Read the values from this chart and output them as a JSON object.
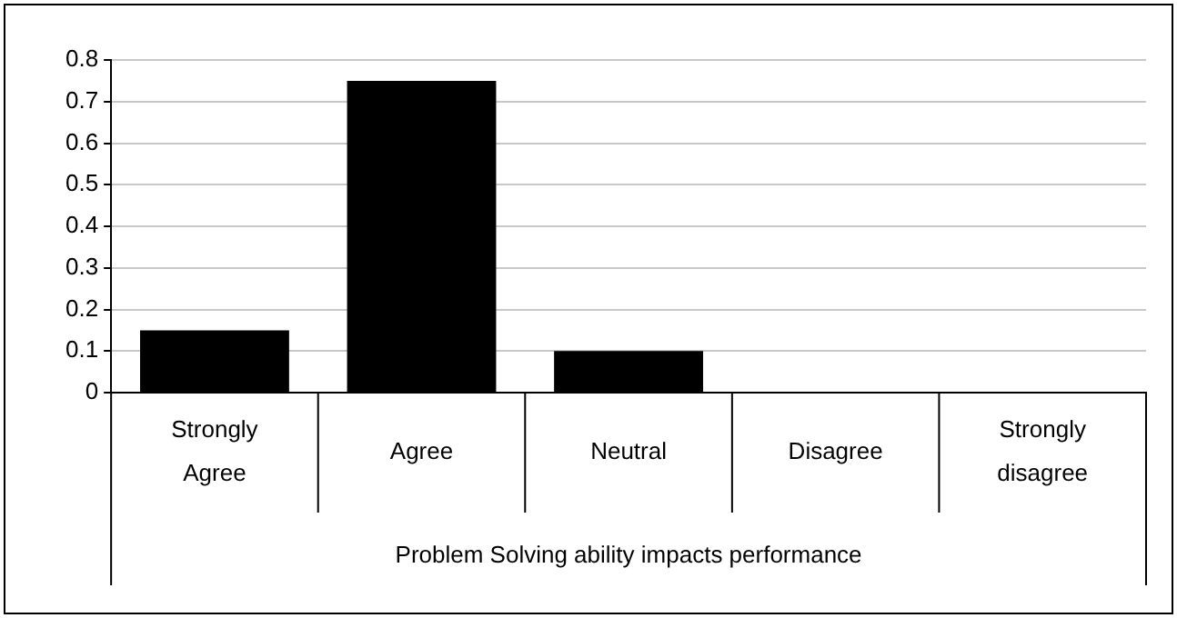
{
  "chart_data": {
    "type": "bar",
    "xlabel": "Problem Solving ability impacts performance",
    "categories": [
      "Strongly Agree",
      "Agree",
      "Neutral",
      "Disagree",
      "Strongly disagree"
    ],
    "values": [
      0.15,
      0.75,
      0.1,
      0,
      0
    ],
    "color": "#000000",
    "ylim": [
      0,
      0.8
    ],
    "yticks": [
      0,
      0.1,
      0.2,
      0.3,
      0.4,
      0.5,
      0.6,
      0.7,
      0.8
    ],
    "grid": "y",
    "legend": false
  }
}
